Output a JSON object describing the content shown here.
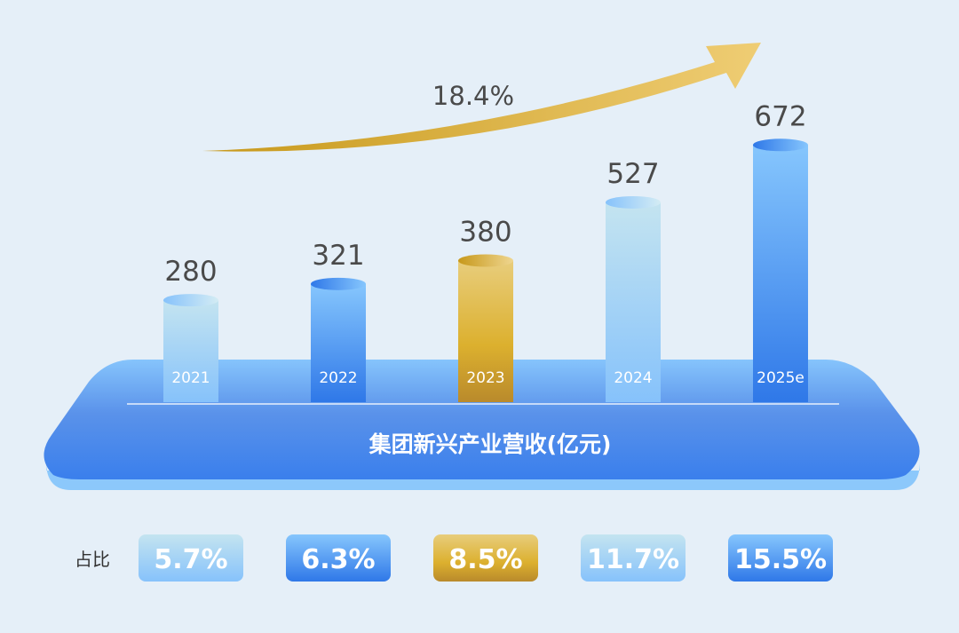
{
  "chart_data": {
    "type": "bar",
    "title": "集团新兴产业营收(亿元)",
    "categories": [
      "2021",
      "2022",
      "2023",
      "2024",
      "2025e"
    ],
    "values": [
      280,
      321,
      380,
      527,
      672
    ],
    "growth_label": "18.4%",
    "share_label": "占比",
    "shares": [
      "5.7%",
      "6.3%",
      "8.5%",
      "11.7%",
      "15.5%"
    ],
    "bar_styles": [
      "light",
      "blue",
      "gold",
      "light",
      "blue"
    ],
    "colors": {
      "light": [
        "#c4e4f0",
        "#86c2fb"
      ],
      "blue": [
        "#86c6fd",
        "#2f78e8"
      ],
      "gold": [
        "#e8cd7c",
        "#dcb02e",
        "#b98a2c"
      ],
      "platform": [
        "#86c4fc",
        "#3a7fec"
      ],
      "arrow": [
        "#c7981a",
        "#efcd74"
      ]
    }
  }
}
